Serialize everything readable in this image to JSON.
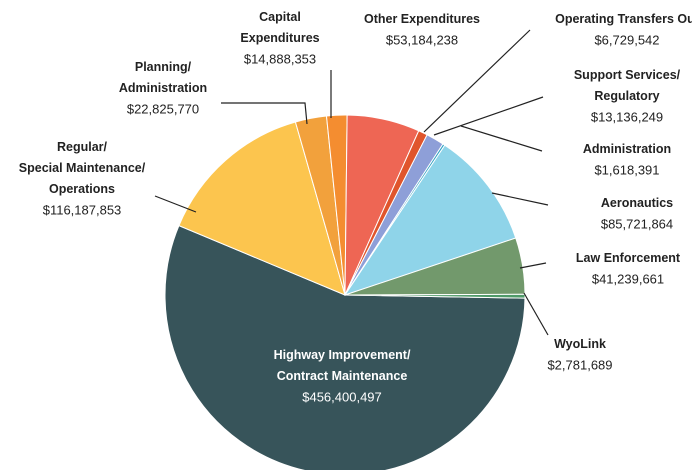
{
  "chart_data": {
    "type": "pie",
    "categories": [
      "Highway Improvement/\nContract Maintenance",
      "Regular/\nSpecial Maintenance/\nOperations",
      "Planning/\nAdministration",
      "Capital\nExpenditures",
      "Other Expenditures",
      "Operating Transfers Out",
      "Support Services/\nRegulatory",
      "Administration",
      "Aeronautics",
      "Law Enforcement",
      "WyoLink"
    ],
    "values": [
      456400497,
      116187853,
      22825770,
      14888353,
      53184238,
      6729542,
      13136249,
      1618391,
      85721864,
      41239661,
      2781689
    ],
    "value_labels": [
      "$456,400,497",
      "$116,187,853",
      "$22,825,770",
      "$14,888,353",
      "$53,184,238",
      "$6,729,542",
      "$13,136,249",
      "$1,618,391",
      "$85,721,864",
      "$41,239,661",
      "$2,781,689"
    ],
    "colors": [
      "#37545a",
      "#fcc54e",
      "#f2a13c",
      "#f48d30",
      "#ee6654",
      "#e0552c",
      "#8e9fd8",
      "#2aa0c2",
      "#8fd4e9",
      "#72996c",
      "#4f9a69"
    ]
  }
}
